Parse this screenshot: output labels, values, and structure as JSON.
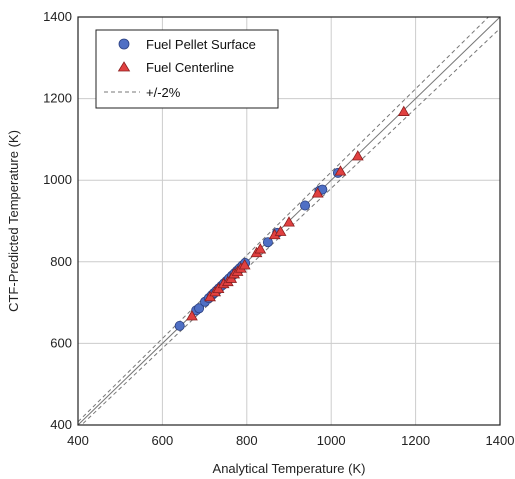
{
  "chart_data": {
    "type": "scatter",
    "xlabel": "Analytical Temperature (K)",
    "ylabel": "CTF-Predicted Temperature (K)",
    "xlim": [
      400,
      1400
    ],
    "ylim": [
      400,
      1400
    ],
    "xticks": [
      400,
      600,
      800,
      1000,
      1200,
      1400
    ],
    "yticks": [
      400,
      600,
      800,
      1000,
      1200,
      1400
    ],
    "grid": true,
    "legend_position": "top-left",
    "legend": {
      "surface": "Fuel Pellet Surface",
      "centerline": "Fuel Centerline",
      "band": "+/-2%"
    },
    "band_percent": 2,
    "colors": {
      "surface": "#4f6fc4",
      "centerline": "#e04040",
      "band": "#777777",
      "identity": "#777777",
      "grid": "#cccccc"
    },
    "series": [
      {
        "key": "surface",
        "name": "Fuel Pellet Surface",
        "marker": "circle",
        "points": [
          [
            641,
            643
          ],
          [
            680,
            681
          ],
          [
            687,
            686
          ],
          [
            701,
            702
          ],
          [
            710,
            711
          ],
          [
            717,
            718
          ],
          [
            722,
            723
          ],
          [
            728,
            729
          ],
          [
            734,
            735
          ],
          [
            740,
            741
          ],
          [
            746,
            747
          ],
          [
            752,
            753
          ],
          [
            758,
            759
          ],
          [
            765,
            766
          ],
          [
            771,
            772
          ],
          [
            777,
            778
          ],
          [
            783,
            784
          ],
          [
            790,
            791
          ],
          [
            796,
            797
          ],
          [
            850,
            848
          ],
          [
            872,
            871
          ],
          [
            938,
            938
          ],
          [
            972,
            974
          ],
          [
            979,
            977
          ],
          [
            1016,
            1018
          ]
        ]
      },
      {
        "key": "centerline",
        "name": "Fuel Centerline",
        "marker": "triangle",
        "points": [
          [
            670,
            667
          ],
          [
            713,
            714
          ],
          [
            725,
            726
          ],
          [
            733,
            734
          ],
          [
            745,
            746
          ],
          [
            755,
            751
          ],
          [
            763,
            759
          ],
          [
            770,
            770
          ],
          [
            778,
            776
          ],
          [
            786,
            784
          ],
          [
            795,
            792
          ],
          [
            823,
            822
          ],
          [
            832,
            831
          ],
          [
            866,
            866
          ],
          [
            880,
            874
          ],
          [
            900,
            897
          ],
          [
            968,
            968
          ],
          [
            1022,
            1022
          ],
          [
            1063,
            1059
          ],
          [
            1172,
            1168
          ]
        ]
      }
    ]
  }
}
